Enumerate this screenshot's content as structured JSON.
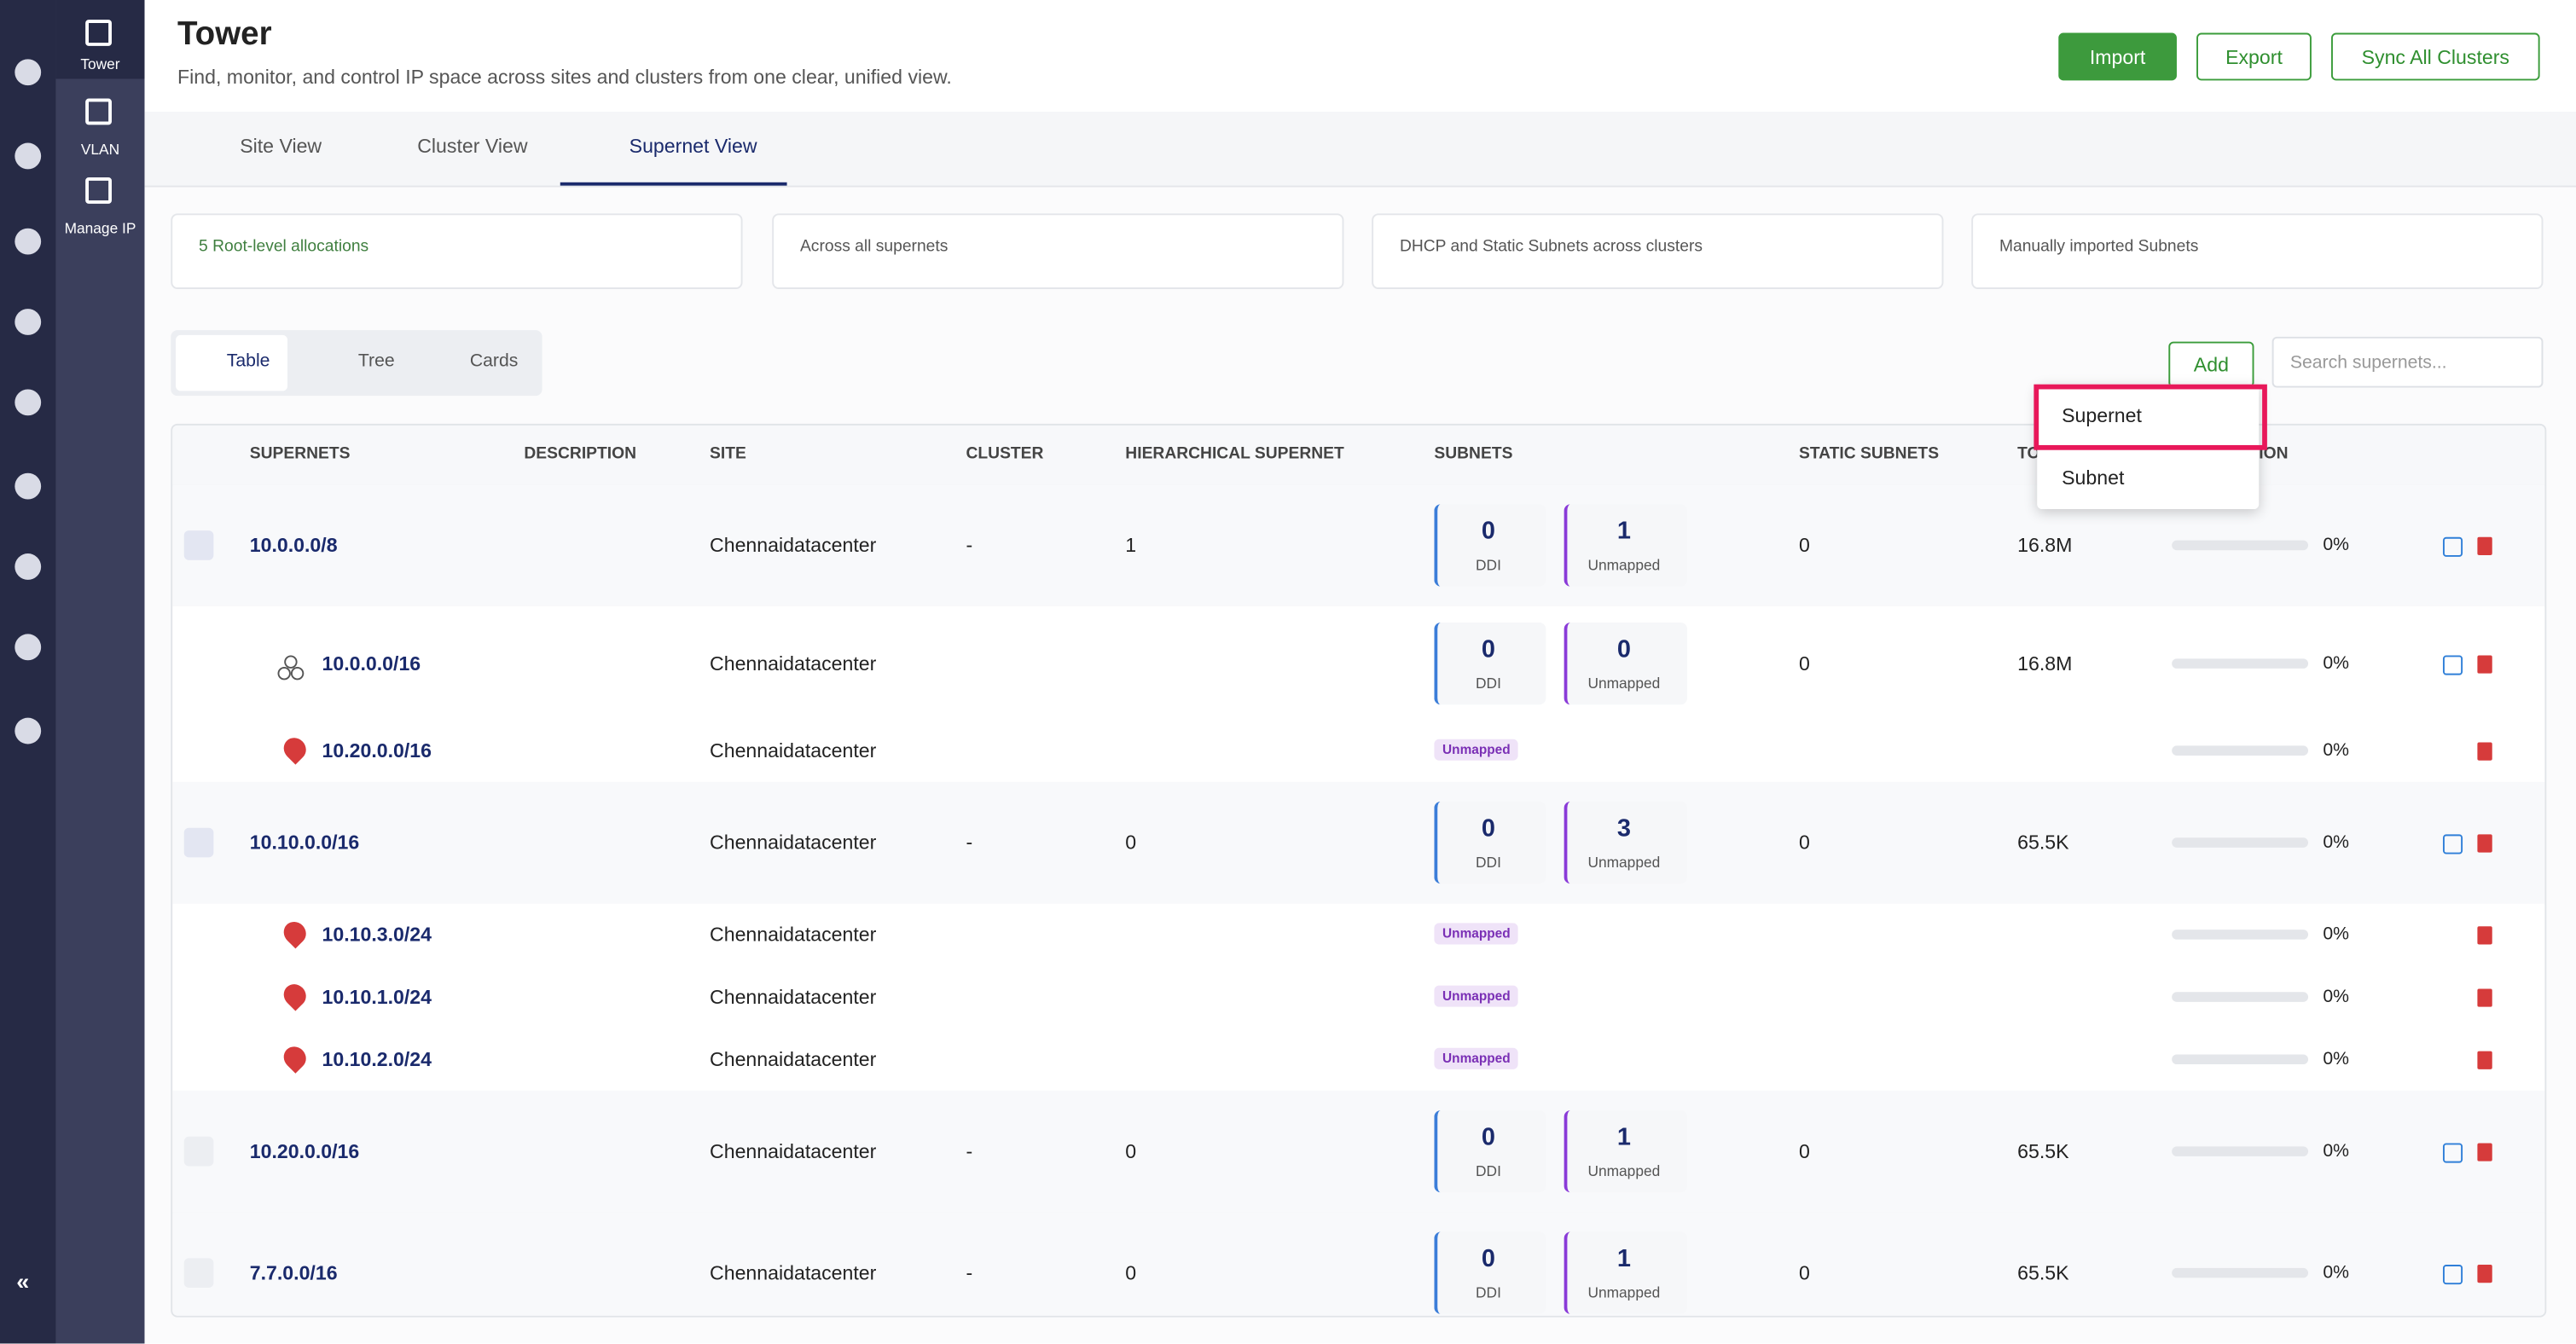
{
  "sidebar": {
    "items": [
      "Tower",
      "VLAN",
      "Manage IP"
    ]
  },
  "header": {
    "title": "Tower",
    "subtitle": "Find, monitor, and control IP space across sites and clusters from one clear, unified view.",
    "buttons": [
      "Import",
      "Export",
      "Sync All Clusters"
    ]
  },
  "tabs": [
    "Site View",
    "Cluster View",
    "Supernet View"
  ],
  "summary_cards": [
    "5 Root-level allocations",
    "Across all supernets",
    "DHCP and Static Subnets across clusters",
    "Manually imported Subnets"
  ],
  "view_toggle": [
    "Table",
    "Tree",
    "Cards"
  ],
  "add_button": "Add",
  "add_menu": [
    "Supernet",
    "Subnet"
  ],
  "search_placeholder": "Search supernets...",
  "table": {
    "headers": [
      "SUPERNETS",
      "DESCRIPTION",
      "SITE",
      "CLUSTER",
      "HIERARCHICAL SUPERNET",
      "SUBNETS",
      "STATIC SUBNETS",
      "TO",
      "ION"
    ],
    "labels": {
      "ddi": "DDI",
      "unmapped": "Unmapped"
    },
    "rows": [
      {
        "kind": "parent",
        "expanded": true,
        "name": "10.0.0.0/8",
        "site": "Chennaidatacenter",
        "cluster": "-",
        "hierarchical": 1,
        "ddi": 0,
        "unmapped": 1,
        "static": 0,
        "total": "16.8M",
        "util": "0%"
      },
      {
        "kind": "child-counts",
        "name": "10.0.0.0/16",
        "site": "Chennaidatacenter",
        "ddi": 0,
        "unmapped": 0,
        "static": 0,
        "total": "16.8M",
        "util": "0%"
      },
      {
        "kind": "child",
        "name": "10.20.0.0/16",
        "site": "Chennaidatacenter",
        "badge": "Unmapped",
        "util": "0%"
      },
      {
        "kind": "parent",
        "expanded": true,
        "name": "10.10.0.0/16",
        "site": "Chennaidatacenter",
        "cluster": "-",
        "hierarchical": 0,
        "ddi": 0,
        "unmapped": 3,
        "static": 0,
        "total": "65.5K",
        "util": "0%"
      },
      {
        "kind": "child",
        "name": "10.10.3.0/24",
        "site": "Chennaidatacenter",
        "badge": "Unmapped",
        "util": "0%"
      },
      {
        "kind": "child",
        "name": "10.10.1.0/24",
        "site": "Chennaidatacenter",
        "badge": "Unmapped",
        "util": "0%"
      },
      {
        "kind": "child",
        "name": "10.10.2.0/24",
        "site": "Chennaidatacenter",
        "badge": "Unmapped",
        "util": "0%"
      },
      {
        "kind": "parent",
        "expanded": false,
        "name": "10.20.0.0/16",
        "site": "Chennaidatacenter",
        "cluster": "-",
        "hierarchical": 0,
        "ddi": 0,
        "unmapped": 1,
        "static": 0,
        "total": "65.5K",
        "util": "0%"
      },
      {
        "kind": "parent",
        "expanded": false,
        "name": "7.7.0.0/16",
        "site": "Chennaidatacenter",
        "cluster": "-",
        "hierarchical": 0,
        "ddi": 0,
        "unmapped": 1,
        "static": 0,
        "total": "65.5K",
        "util": "0%"
      }
    ]
  }
}
